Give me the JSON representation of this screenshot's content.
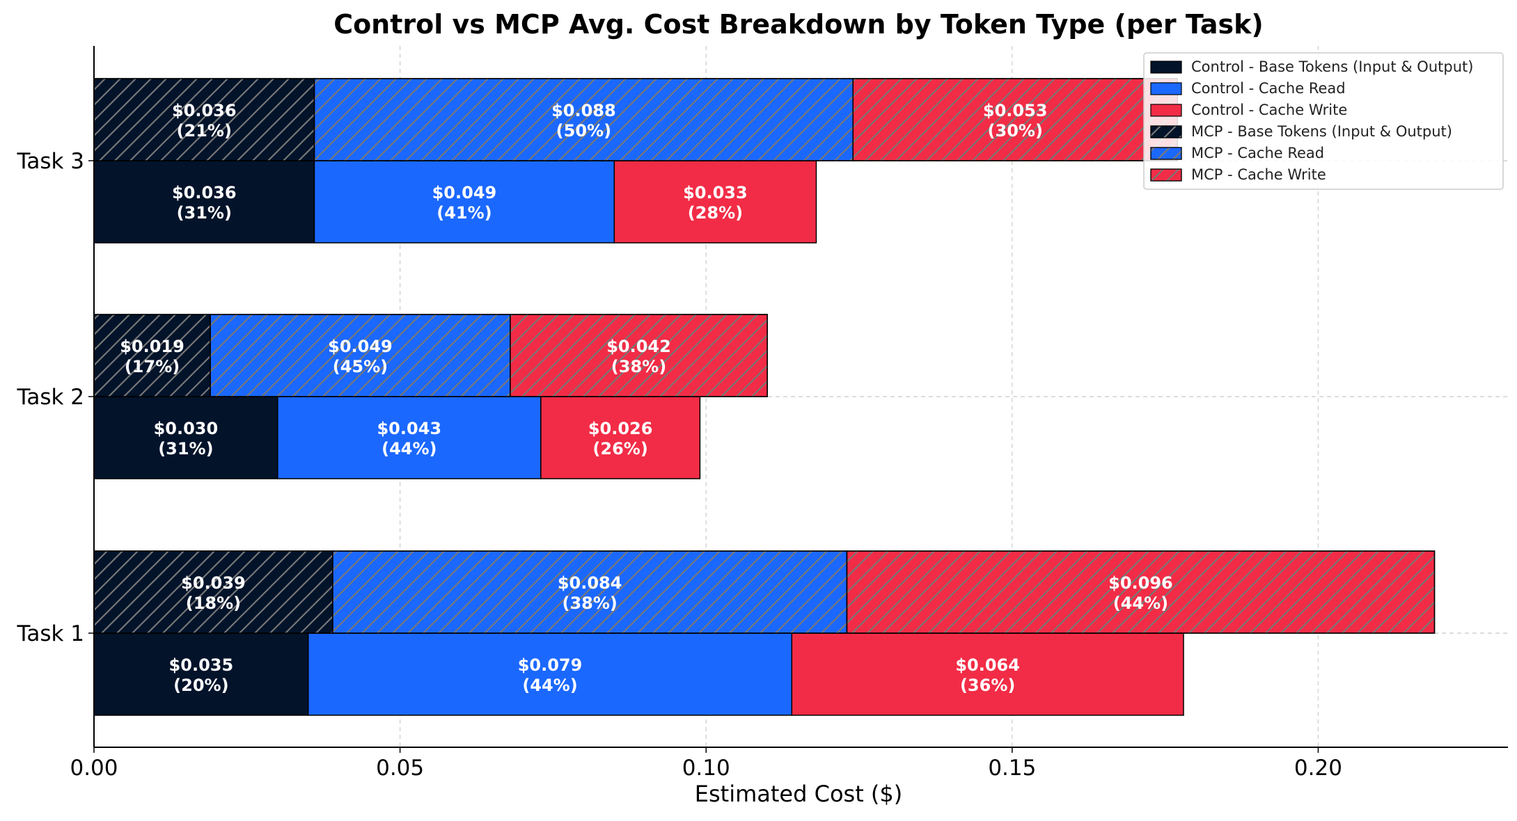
{
  "chart_data": {
    "type": "bar",
    "orientation": "horizontal",
    "stacked": true,
    "title": "Control vs MCP Avg. Cost Breakdown by Token Type (per Task)",
    "xlabel": "Estimated Cost ($)",
    "ylabel": "",
    "xlim": [
      0,
      0.231
    ],
    "xticks": [
      "0.00",
      "0.05",
      "0.10",
      "0.15",
      "0.20"
    ],
    "xtick_values": [
      0,
      0.05,
      0.1,
      0.15,
      0.2
    ],
    "grid": true,
    "legend_position": "top-right",
    "categories": [
      "Task 1",
      "Task 2",
      "Task 3"
    ],
    "colors": {
      "base": "#02132a",
      "cache_read": "#1b68ff",
      "cache_write": "#f22c46",
      "hatch": "#777777"
    },
    "groups": [
      {
        "name": "Control",
        "hatched": false,
        "series": [
          {
            "name": "Control - Base Tokens (Input & Output)",
            "color": "#02132a",
            "values": [
              0.035,
              0.03,
              0.036
            ],
            "labels": [
              "$0.035\n(20%)",
              "$0.030\n(31%)",
              "$0.036\n(31%)"
            ]
          },
          {
            "name": "Control - Cache Read",
            "color": "#1b68ff",
            "values": [
              0.079,
              0.043,
              0.049
            ],
            "labels": [
              "$0.079\n(44%)",
              "$0.043\n(44%)",
              "$0.049\n(41%)"
            ]
          },
          {
            "name": "Control - Cache Write",
            "color": "#f22c46",
            "values": [
              0.064,
              0.026,
              0.033
            ],
            "labels": [
              "$0.064\n(36%)",
              "$0.026\n(26%)",
              "$0.033\n(28%)"
            ]
          }
        ]
      },
      {
        "name": "MCP",
        "hatched": true,
        "series": [
          {
            "name": "MCP - Base Tokens (Input & Output)",
            "color": "#02132a",
            "values": [
              0.039,
              0.019,
              0.036
            ],
            "labels": [
              "$0.039\n(18%)",
              "$0.019\n(17%)",
              "$0.036\n(21%)"
            ]
          },
          {
            "name": "MCP - Cache Read",
            "color": "#1b68ff",
            "values": [
              0.084,
              0.049,
              0.088
            ],
            "labels": [
              "$0.084\n(38%)",
              "$0.049\n(45%)",
              "$0.088\n(50%)"
            ]
          },
          {
            "name": "MCP - Cache Write",
            "color": "#f22c46",
            "values": [
              0.096,
              0.042,
              0.053
            ],
            "labels": [
              "$0.096\n(44%)",
              "$0.042\n(38%)",
              "$0.053\n(30%)"
            ]
          }
        ]
      }
    ]
  }
}
